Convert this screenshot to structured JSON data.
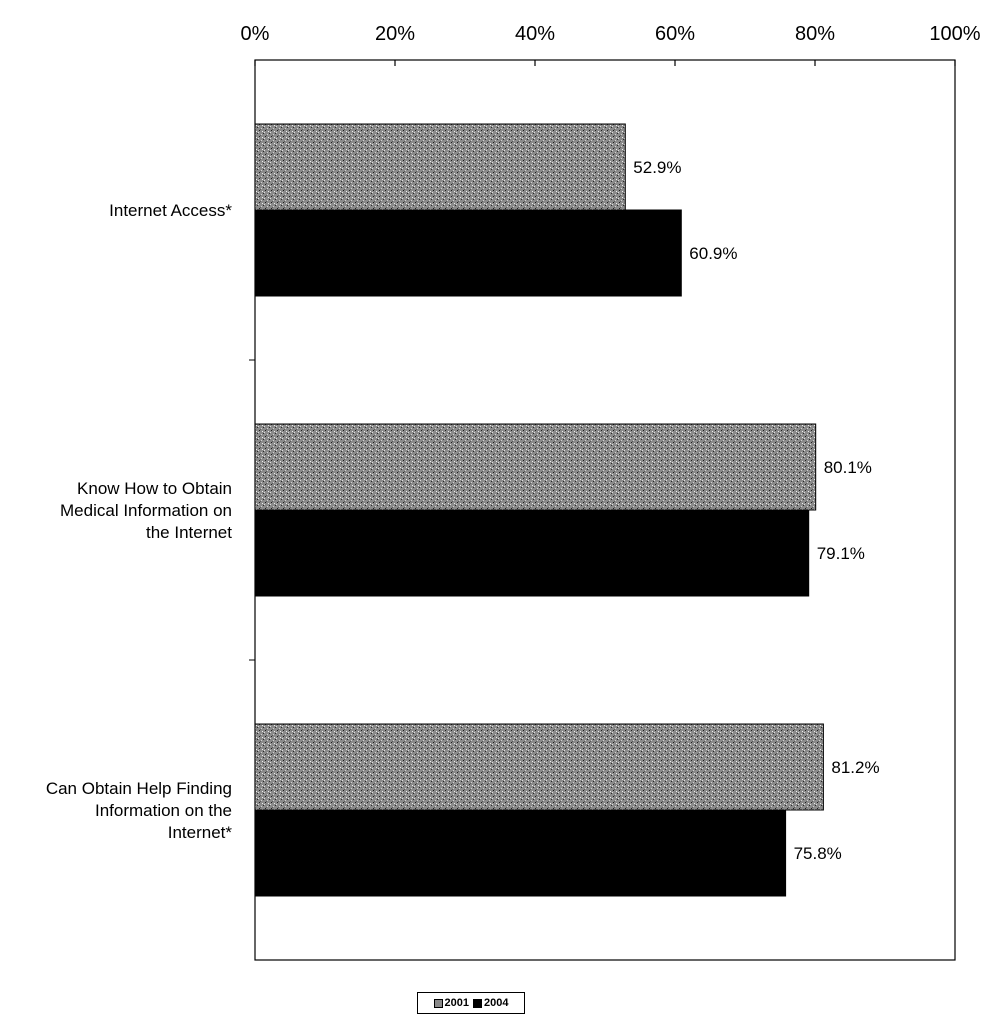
{
  "chart_data": {
    "type": "bar",
    "orientation": "horizontal",
    "title": "",
    "xlabel": "",
    "ylabel": "",
    "xlim": [
      0,
      100
    ],
    "x_ticks": [
      "0%",
      "20%",
      "40%",
      "60%",
      "80%",
      "100%"
    ],
    "x_tick_values": [
      0,
      20,
      40,
      60,
      80,
      100
    ],
    "x_axis_position": "top",
    "grid": false,
    "legend_position": "bottom-center",
    "categories": [
      [
        "Internet Access*"
      ],
      [
        "Know How to Obtain",
        "Medical Information on",
        "the Internet"
      ],
      [
        "Can Obtain Help Finding",
        "Information on the",
        "Internet*"
      ]
    ],
    "series": [
      {
        "name": "2001",
        "values": [
          52.9,
          80.1,
          81.2
        ],
        "labels": [
          "52.9%",
          "80.1%",
          "81.2%"
        ],
        "color": "#8a8a8a",
        "pattern": "speckled"
      },
      {
        "name": "2004",
        "values": [
          60.9,
          79.1,
          75.8
        ],
        "labels": [
          "60.9%",
          "79.1%",
          "75.8%"
        ],
        "color": "#000000",
        "pattern": "solid"
      }
    ]
  }
}
